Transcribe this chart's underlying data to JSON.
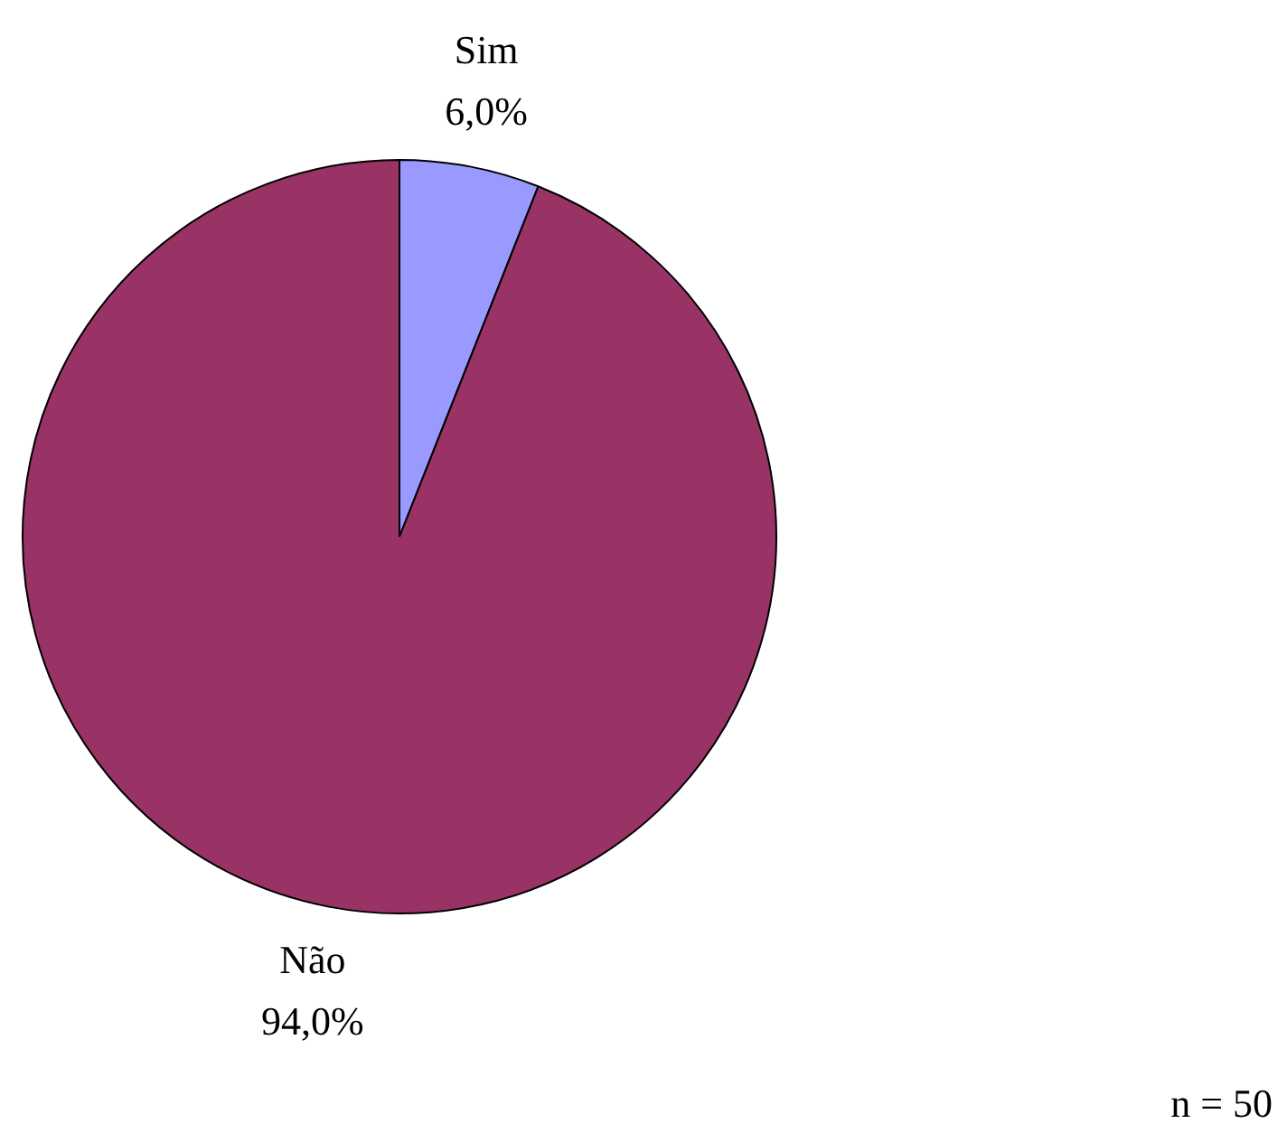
{
  "chart_data": {
    "type": "pie",
    "categories": [
      "Sim",
      "Não"
    ],
    "values": [
      6.0,
      94.0
    ],
    "colors": [
      "#9999ff",
      "#993366"
    ],
    "value_labels": [
      "6,0%",
      "94,0%"
    ],
    "annotations": [
      "n = 50"
    ]
  }
}
